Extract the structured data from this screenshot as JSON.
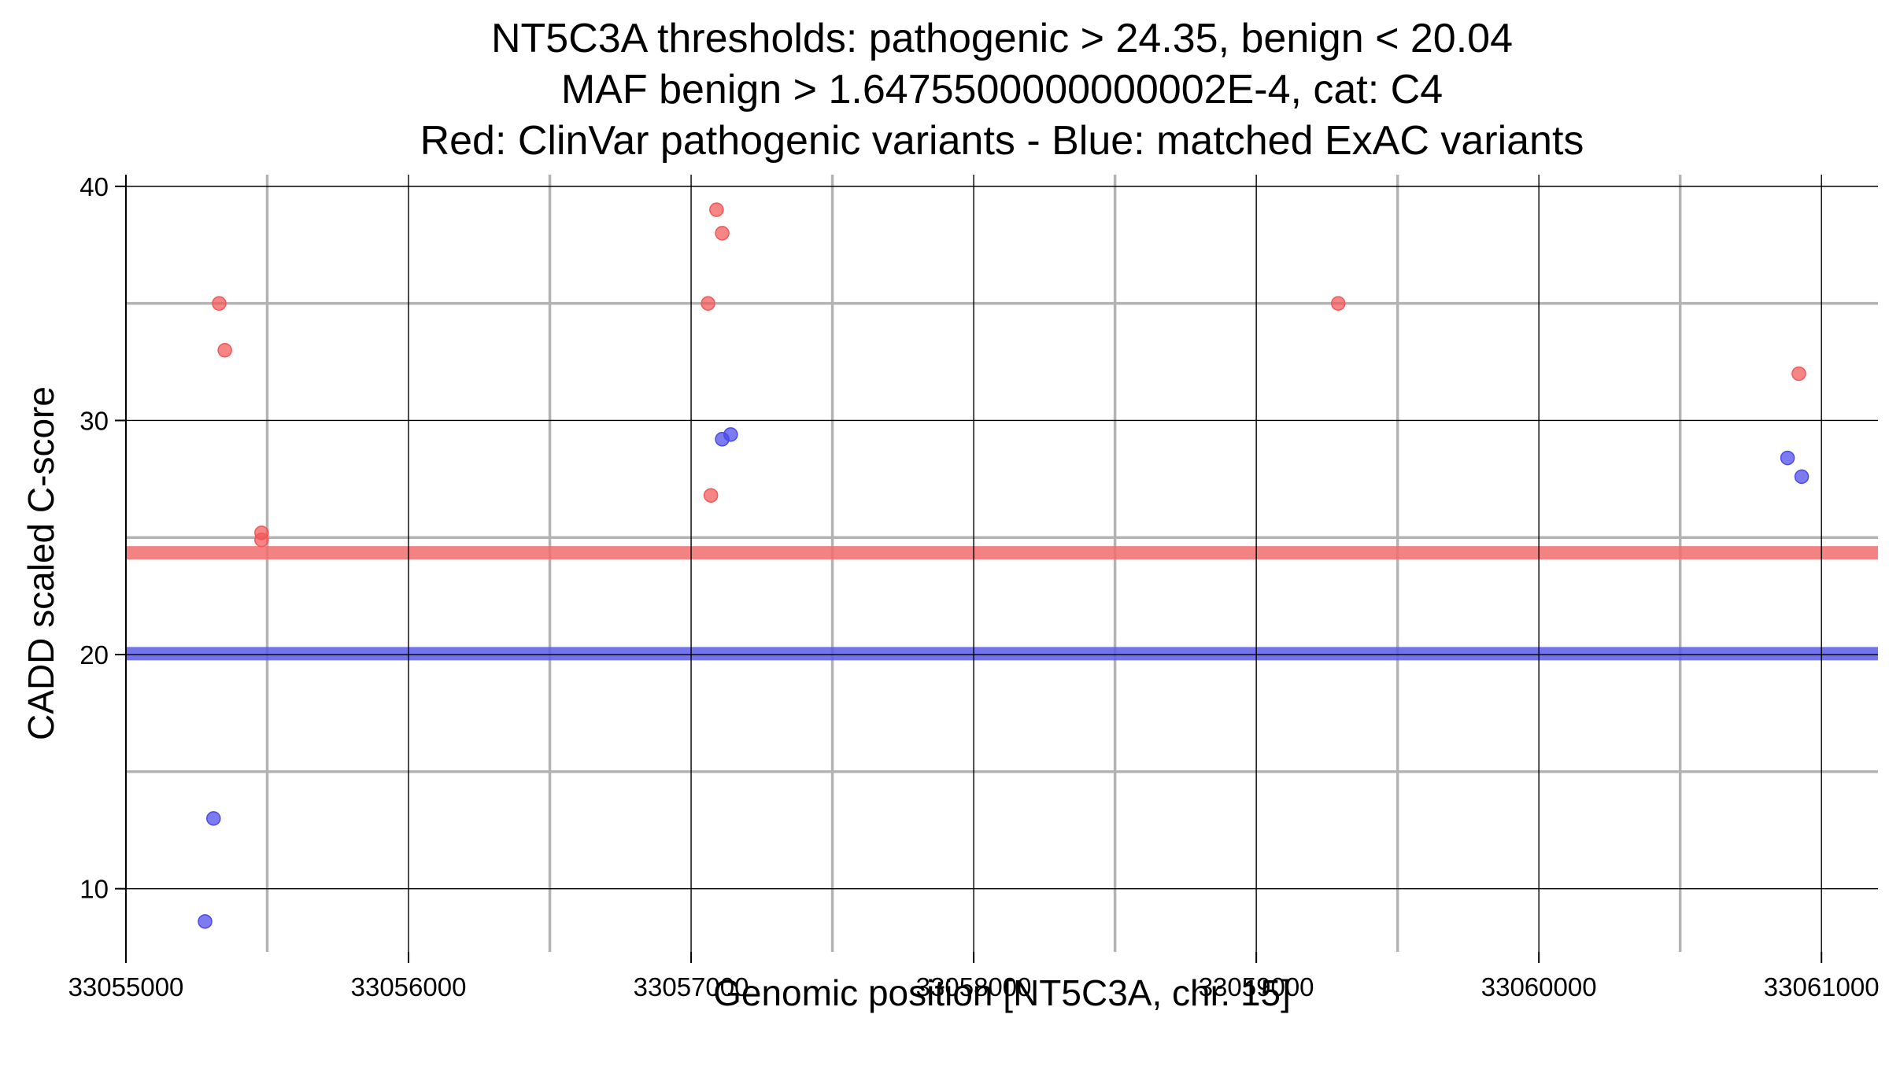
{
  "chart_data": {
    "type": "scatter",
    "title_lines": [
      "NT5C3A thresholds: pathogenic > 24.35, benign < 20.04",
      "MAF benign > 1.6475500000000002E-4, cat: C4",
      "Red: ClinVar pathogenic variants - Blue: matched ExAC variants"
    ],
    "xlabel": "Genomic position [NT5C3A, chr. 15]",
    "ylabel": "CADD scaled C-score",
    "xlim": [
      33055000,
      33061200
    ],
    "ylim": [
      7.3,
      40.5
    ],
    "x_ticks": [
      33055000,
      33056000,
      33057000,
      33058000,
      33059000,
      33060000,
      33061000
    ],
    "x_tick_labels": [
      "33055000",
      "33056000",
      "33057000",
      "33058000",
      "33059000",
      "33060000",
      "33061000"
    ],
    "y_ticks": [
      10,
      20,
      30,
      40
    ],
    "y_tick_labels": [
      "10",
      "20",
      "30",
      "40"
    ],
    "x_minor_grid": [
      33055500,
      33056500,
      33057500,
      33058500,
      33059500,
      33060500
    ],
    "y_minor_grid": [
      15,
      25,
      35
    ],
    "grid": true,
    "thresholds": [
      {
        "value": 24.35,
        "color": "#f26d6d"
      },
      {
        "value": 20.04,
        "color": "#5b5bea"
      }
    ],
    "series": [
      {
        "color": "#f25757",
        "points": [
          [
            33055330,
            35
          ],
          [
            33055350,
            33
          ],
          [
            33055480,
            25.2
          ],
          [
            33055480,
            24.9
          ],
          [
            33057060,
            35
          ],
          [
            33057070,
            26.8
          ],
          [
            33057090,
            39
          ],
          [
            33057110,
            38
          ],
          [
            33059290,
            35
          ],
          [
            33060920,
            32
          ]
        ]
      },
      {
        "color": "#4a4aea",
        "points": [
          [
            33055280,
            8.6
          ],
          [
            33055310,
            13
          ],
          [
            33057110,
            29.2
          ],
          [
            33057140,
            29.4
          ],
          [
            33060880,
            28.4
          ],
          [
            33060930,
            27.6
          ]
        ]
      }
    ]
  }
}
